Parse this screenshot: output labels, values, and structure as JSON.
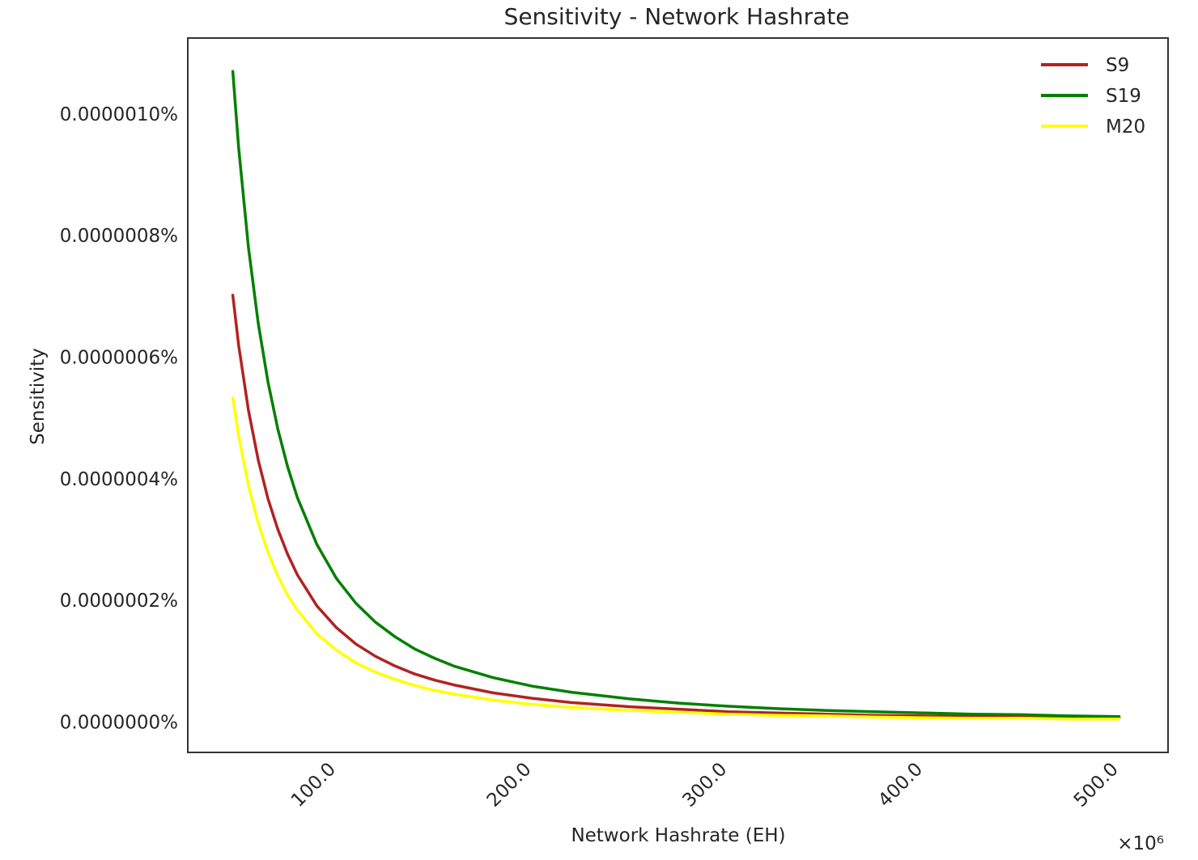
{
  "chart_data": {
    "type": "line",
    "title": "Sensitivity - Network Hashrate",
    "xlabel": "Network Hashrate (EH)",
    "ylabel": "Sensitivity",
    "x_offset_label": "×10⁶",
    "x_tick_values": [
      100,
      200,
      300,
      400,
      500
    ],
    "x_tick_labels": [
      "100.0",
      "200.0",
      "300.0",
      "400.0",
      "500.0"
    ],
    "y_tick_values": [
      0,
      2e-09,
      4e-09,
      6e-09,
      8e-09,
      1e-08
    ],
    "y_tick_labels": [
      "0.0000000%",
      "0.0000002%",
      "0.0000004%",
      "0.0000006%",
      "0.0000008%",
      "0.0000010%"
    ],
    "xlim": [
      24,
      525
    ],
    "ylim": [
      -5e-10,
      1.125e-08
    ],
    "grid": false,
    "legend_position": "top-right",
    "x": [
      47,
      50,
      55,
      60,
      65,
      70,
      75,
      80,
      90,
      100,
      110,
      120,
      130,
      140,
      150,
      160,
      180,
      200,
      220,
      250,
      275,
      300,
      325,
      350,
      375,
      400,
      425,
      450,
      475,
      500
    ],
    "series": [
      {
        "name": "S9",
        "color": "#b22222",
        "values": [
          7.02e-09,
          6.2e-09,
          5.13e-09,
          4.31e-09,
          3.67e-09,
          3.17e-09,
          2.76e-09,
          2.42e-09,
          1.91e-09,
          1.55e-09,
          1.28e-09,
          1.08e-09,
          9.2e-10,
          7.9e-10,
          6.9e-10,
          6.1e-10,
          4.8e-10,
          3.9e-10,
          3.2e-10,
          2.5e-10,
          2.1e-10,
          1.7e-10,
          1.5e-10,
          1.3e-10,
          1.1e-10,
          1e-10,
          9e-11,
          8e-11,
          7e-11,
          6e-11
        ]
      },
      {
        "name": "S19",
        "color": "#008000",
        "values": [
          1.07e-08,
          9.45e-09,
          7.81e-09,
          6.56e-09,
          5.59e-09,
          4.82e-09,
          4.2e-09,
          3.69e-09,
          2.92e-09,
          2.36e-09,
          1.95e-09,
          1.64e-09,
          1.4e-09,
          1.2e-09,
          1.05e-09,
          9.2e-10,
          7.3e-10,
          5.9e-10,
          4.9e-10,
          3.8e-10,
          3.1e-10,
          2.6e-10,
          2.2e-10,
          1.9e-10,
          1.7e-10,
          1.5e-10,
          1.3e-10,
          1.2e-10,
          1e-10,
          9e-11
        ]
      },
      {
        "name": "M20",
        "color": "#ffff00",
        "values": [
          5.33e-09,
          4.71e-09,
          3.89e-09,
          3.27e-09,
          2.79e-09,
          2.4e-09,
          2.09e-09,
          1.84e-09,
          1.45e-09,
          1.18e-09,
          9.7e-10,
          8.2e-10,
          7e-10,
          6e-10,
          5.2e-10,
          4.6e-10,
          3.6e-10,
          2.9e-10,
          2.4e-10,
          1.9e-10,
          1.6e-10,
          1.3e-10,
          1.1e-10,
          1e-10,
          8e-11,
          7e-11,
          6e-11,
          6e-11,
          5e-11,
          5e-11
        ]
      }
    ]
  }
}
